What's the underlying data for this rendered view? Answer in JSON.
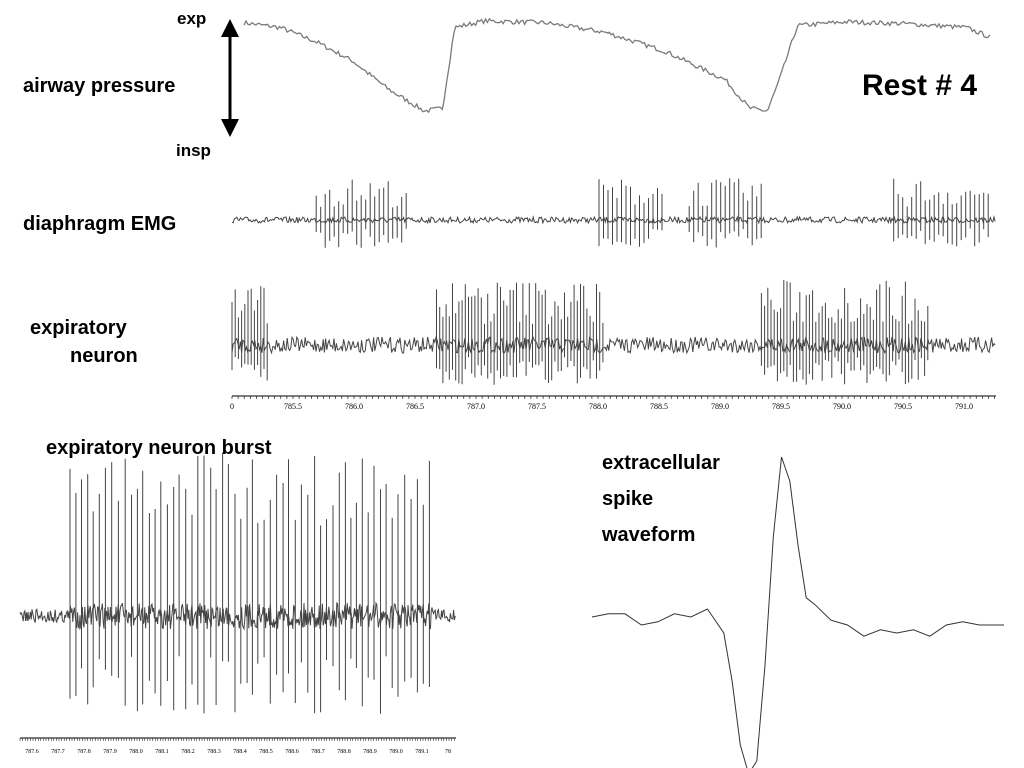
{
  "labels": {
    "exp": "exp",
    "insp": "insp",
    "airway": "airway pressure",
    "rest": "Rest # 4",
    "emg": "diaphragm EMG",
    "neuron1": "expiratory",
    "neuron2": "neuron",
    "burst": "expiratory neuron burst",
    "spike1": "extracellular",
    "spike2": "spike",
    "spike3": "waveform"
  },
  "colors": {
    "trace": "#444444",
    "pressure": "#7a7a7a",
    "waveform": "#333333"
  },
  "chart_data": [
    {
      "type": "line",
      "title": "airway pressure",
      "series": [
        {
          "name": "airway pressure",
          "x": [
            785.0,
            785.3,
            785.6,
            785.9,
            786.2,
            786.5,
            786.65,
            786.75,
            787.0,
            787.5,
            788.0,
            788.5,
            789.0,
            789.2,
            789.35,
            789.45,
            789.6,
            790.0,
            790.5,
            791.0,
            791.2
          ],
          "y": [
            0.95,
            0.9,
            0.75,
            0.55,
            0.25,
            0.02,
            0.05,
            0.9,
            0.97,
            0.95,
            0.85,
            0.65,
            0.35,
            0.05,
            0.02,
            0.35,
            0.92,
            0.96,
            0.94,
            0.9,
            0.8
          ]
        }
      ],
      "ylabel_top": "exp",
      "ylabel_bottom": "insp",
      "xlim": [
        784.9,
        791.25
      ]
    },
    {
      "type": "line",
      "title": "diaphragm EMG",
      "bursts": [
        [
          785.6,
          786.35
        ],
        [
          787.95,
          788.5
        ],
        [
          788.7,
          789.3
        ],
        [
          790.4,
          791.2
        ]
      ],
      "xlim": [
        784.9,
        791.25
      ]
    },
    {
      "type": "line",
      "title": "expiratory neuron",
      "bursts": [
        [
          784.9,
          785.2
        ],
        [
          786.6,
          788.0
        ],
        [
          789.3,
          790.7
        ]
      ],
      "x_ticks": [
        "0",
        "785.5",
        "786.0",
        "786.5",
        "787.0",
        "787.5",
        "788.0",
        "788.5",
        "789.0",
        "789.5",
        "790.0",
        "790.5",
        "791.0"
      ],
      "xlim": [
        784.9,
        791.25
      ]
    },
    {
      "type": "line",
      "title": "expiratory neuron burst",
      "x_ticks": [
        "787.6",
        "787.7",
        "787.8",
        "787.9",
        "788.0",
        "788.1",
        "788.2",
        "788.3",
        "788.4",
        "788.5",
        "788.6",
        "788.7",
        "788.8",
        "788.9",
        "789.0",
        "789.1",
        "78"
      ],
      "xlim": [
        787.55,
        789.25
      ]
    },
    {
      "type": "line",
      "title": "extracellular spike waveform",
      "series": [
        {
          "name": "spike",
          "x": [
            0,
            4,
            8,
            12,
            16,
            20,
            24,
            28,
            32,
            34,
            36,
            38,
            40,
            42,
            44,
            46,
            48,
            50,
            52,
            54,
            58,
            62,
            66,
            70,
            74,
            78,
            82,
            86,
            90,
            94,
            100
          ],
          "y": [
            0.0,
            0.02,
            0.02,
            -0.05,
            -0.03,
            0.02,
            0.0,
            0.05,
            -0.1,
            -0.4,
            -0.8,
            -0.98,
            -0.9,
            -0.3,
            0.5,
            1.0,
            0.85,
            0.45,
            0.12,
            0.08,
            -0.02,
            -0.05,
            -0.12,
            -0.08,
            -0.1,
            -0.08,
            -0.12,
            -0.05,
            -0.03,
            -0.05,
            -0.05
          ]
        }
      ]
    }
  ]
}
